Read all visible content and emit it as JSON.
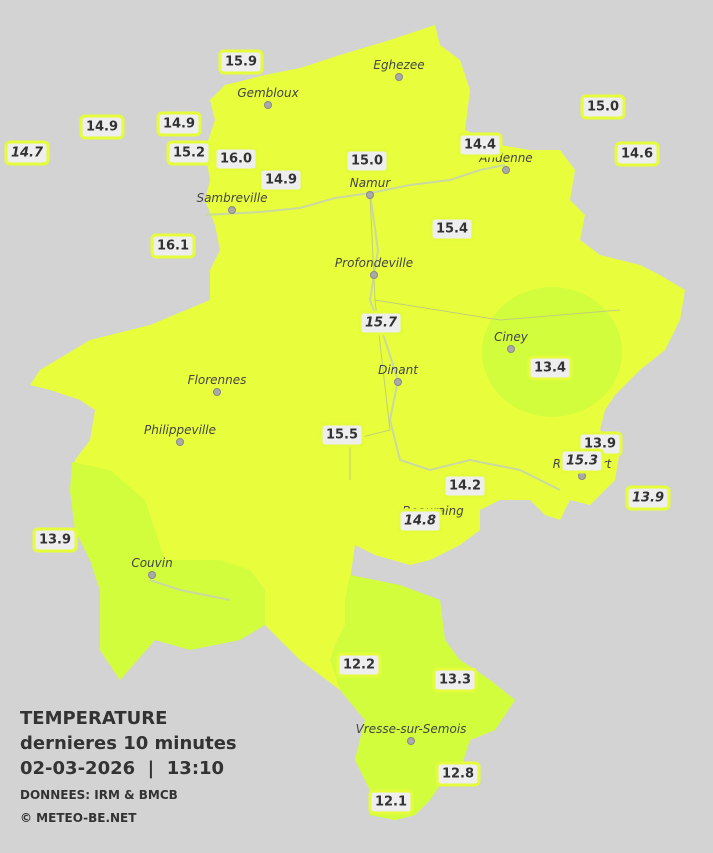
{
  "legend": {
    "title": "TEMPERATURE",
    "subtitle": "dernieres 10 minutes",
    "datetime": "02-03-2026  |  13:10",
    "source": "DONNEES: IRM & BMCB",
    "copyright": "© METEO-BE.NET"
  },
  "towns": [
    "Eghezee",
    "Gembloux",
    "Andenne",
    "Namur",
    "Sambreville",
    "Profondeville",
    "Ciney",
    "Dinant",
    "Florennes",
    "Philippeville",
    "Rochefort",
    "Beauraing",
    "Couvin",
    "Vresse-sur-Semois"
  ],
  "stations": [
    "15.9",
    "14.9",
    "14.9",
    "14.7",
    "15.2",
    "16.0",
    "14.9",
    "15.0",
    "14.4",
    "15.0",
    "14.6",
    "16.1",
    "15.4",
    "15.7",
    "13.4",
    "15.5",
    "13.9",
    "15.3",
    "14.2",
    "14.8",
    "13.9",
    "13.9",
    "12.2",
    "13.3",
    "12.8",
    "12.1"
  ]
}
